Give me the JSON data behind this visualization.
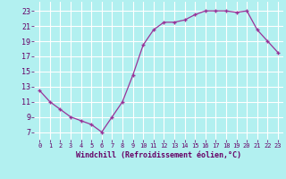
{
  "x": [
    0,
    1,
    2,
    3,
    4,
    5,
    6,
    7,
    8,
    9,
    10,
    11,
    12,
    13,
    14,
    15,
    16,
    17,
    18,
    19,
    20,
    21,
    22,
    23
  ],
  "y": [
    12.5,
    11.0,
    10.0,
    9.0,
    8.5,
    8.0,
    7.0,
    9.0,
    11.0,
    14.5,
    18.5,
    20.5,
    21.5,
    21.5,
    21.8,
    22.5,
    23.0,
    23.0,
    23.0,
    22.8,
    23.0,
    20.5,
    19.0,
    17.5
  ],
  "line_color": "#993399",
  "marker": "+",
  "bg_color": "#b2f0f0",
  "grid_color": "#ffffff",
  "xlabel": "Windchill (Refroidissement éolien,°C)",
  "xlabel_color": "#660066",
  "tick_color": "#660066",
  "ylabel_ticks": [
    7,
    9,
    11,
    13,
    15,
    17,
    19,
    21,
    23
  ],
  "xlim": [
    -0.5,
    23.5
  ],
  "ylim": [
    6.0,
    24.2
  ],
  "xticks": [
    0,
    1,
    2,
    3,
    4,
    5,
    6,
    7,
    8,
    9,
    10,
    11,
    12,
    13,
    14,
    15,
    16,
    17,
    18,
    19,
    20,
    21,
    22,
    23
  ]
}
